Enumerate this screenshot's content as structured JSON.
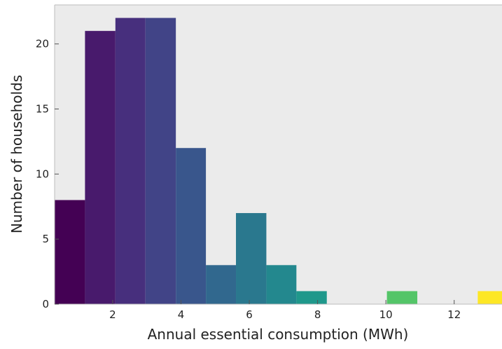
{
  "chart_data": {
    "type": "bar",
    "subtype": "histogram",
    "title": "",
    "xlabel": "Annual essential consumption (MWh)",
    "ylabel": "Number of households",
    "xlim": [
      0.3,
      13.4
    ],
    "ylim": [
      0,
      23
    ],
    "grid": false,
    "bins": [
      {
        "x0": 0.3,
        "x1": 1.19,
        "count": 8
      },
      {
        "x0": 1.19,
        "x1": 2.08,
        "count": 21
      },
      {
        "x0": 2.08,
        "x1": 2.96,
        "count": 22
      },
      {
        "x0": 2.96,
        "x1": 3.85,
        "count": 22
      },
      {
        "x0": 3.85,
        "x1": 4.73,
        "count": 12
      },
      {
        "x0": 4.73,
        "x1": 5.61,
        "count": 3
      },
      {
        "x0": 5.61,
        "x1": 6.5,
        "count": 7
      },
      {
        "x0": 6.5,
        "x1": 7.38,
        "count": 3
      },
      {
        "x0": 7.38,
        "x1": 8.27,
        "count": 1
      },
      {
        "x0": 8.27,
        "x1": 9.15,
        "count": 0
      },
      {
        "x0": 9.15,
        "x1": 10.03,
        "count": 0
      },
      {
        "x0": 10.03,
        "x1": 10.92,
        "count": 1
      },
      {
        "x0": 10.92,
        "x1": 11.8,
        "count": 0
      },
      {
        "x0": 11.8,
        "x1": 12.69,
        "count": 0
      },
      {
        "x0": 12.69,
        "x1": 13.57,
        "count": 1
      }
    ],
    "colors": [
      "#440154",
      "#481a6c",
      "#472f7d",
      "#414487",
      "#39568c",
      "#31688e",
      "#2a788e",
      "#23888e",
      "#1f988b",
      "#22a884",
      "#35b779",
      "#54c568",
      "#7ad151",
      "#a5db36",
      "#fde725"
    ],
    "xticks": [
      2,
      4,
      6,
      8,
      10,
      12
    ],
    "yticks": [
      0,
      5,
      10,
      15,
      20
    ],
    "background": "#ebebeb"
  }
}
